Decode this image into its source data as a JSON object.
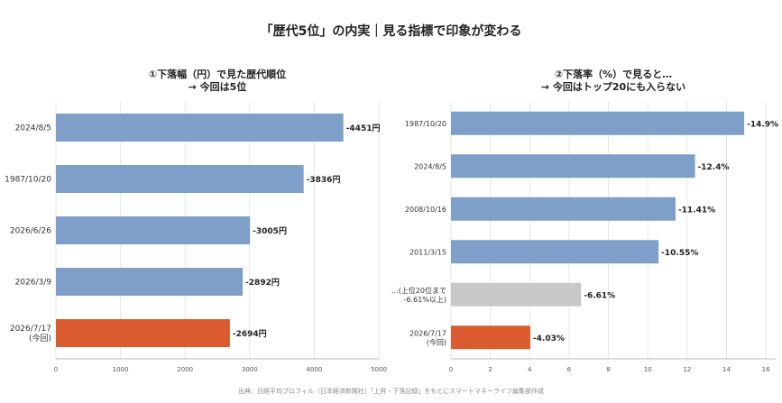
{
  "title": "「歴代5位」の内実｜見る指標で印象が変わる",
  "source": "出典：日経平均プロフィル（日本経済新聞社）「上昇・下落記録」をもとにスマートマネーライフ編集部作成",
  "colors": {
    "default": "#7d9fc8",
    "highlight": "#d95b2f",
    "other": "#c8c8c8"
  },
  "chart_data": [
    {
      "type": "bar",
      "orientation": "horizontal",
      "title_lines": [
        "①下落幅（円）で見た歴代順位",
        "→ 今回は5位"
      ],
      "categories": [
        "2024/8/5",
        "1987/10/20",
        "2026/6/26",
        "2026/3/9",
        "2026/7/17\n(今回)"
      ],
      "values": [
        4451,
        3836,
        3005,
        2892,
        2694
      ],
      "value_labels": [
        "-4451円",
        "-3836円",
        "-3005円",
        "-2892円",
        "-2694円"
      ],
      "bar_colors": [
        "default",
        "default",
        "default",
        "default",
        "highlight"
      ],
      "xlim": [
        0,
        5000
      ],
      "xticks": [
        0,
        1000,
        2000,
        3000,
        4000,
        5000
      ],
      "grid": true
    },
    {
      "type": "bar",
      "orientation": "horizontal",
      "title_lines": [
        "②下落率（%）で見ると…",
        "→ 今回はトップ20にも入らない"
      ],
      "categories": [
        "1987/10/20",
        "2024/8/5",
        "2008/10/16",
        "2011/3/15",
        "…(上位20位まで\n-6.61%以上)",
        "2026/7/17\n(今回)"
      ],
      "values": [
        14.9,
        12.4,
        11.41,
        10.55,
        6.61,
        4.03
      ],
      "value_labels": [
        "-14.9%",
        "-12.4%",
        "-11.41%",
        "-10.55%",
        "-6.61%",
        "-4.03%"
      ],
      "bar_colors": [
        "default",
        "default",
        "default",
        "default",
        "other",
        "highlight"
      ],
      "xlim": [
        0,
        16.5
      ],
      "xticks": [
        0,
        2,
        4,
        6,
        8,
        10,
        12,
        14,
        16
      ],
      "grid": true
    }
  ]
}
